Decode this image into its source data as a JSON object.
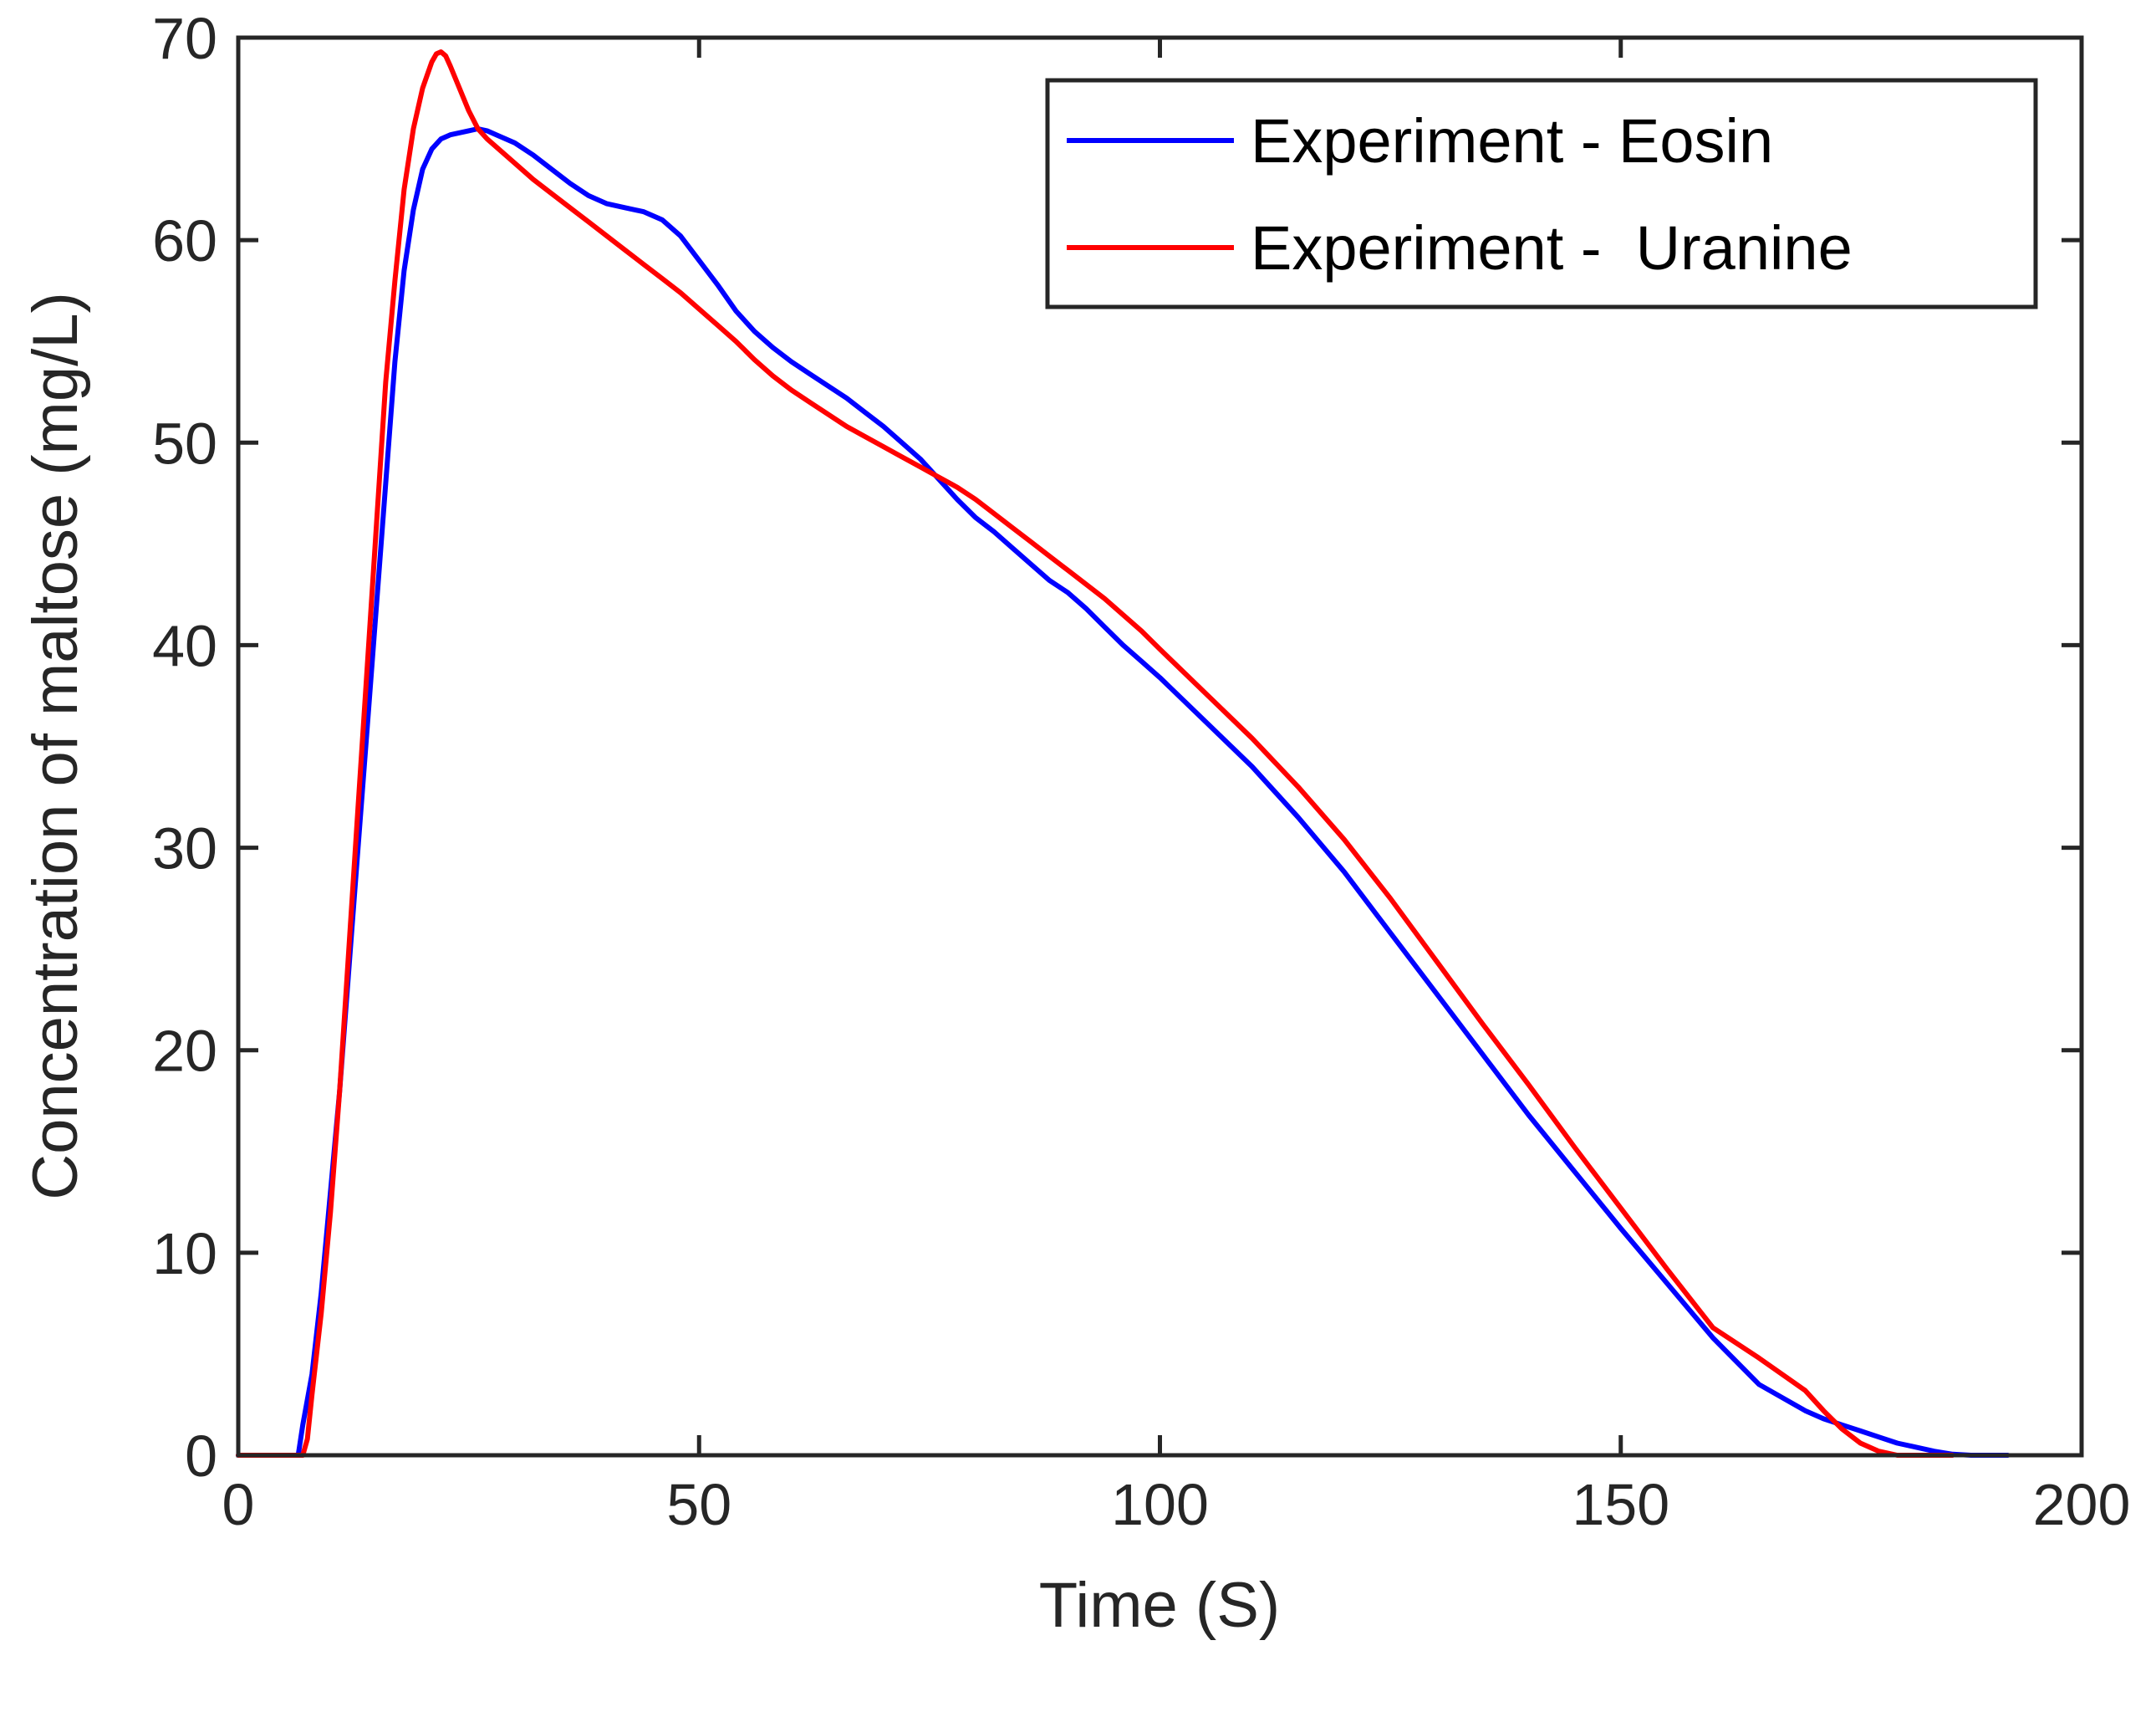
{
  "chart_data": {
    "type": "line",
    "title": "",
    "xlabel": "Time (S)",
    "ylabel": "Concentration of maltose (mg/L)",
    "xlim": [
      0,
      200
    ],
    "ylim": [
      0,
      70
    ],
    "xticks": [
      0,
      50,
      100,
      150,
      200
    ],
    "yticks": [
      0,
      10,
      20,
      30,
      40,
      50,
      60,
      70
    ],
    "grid": false,
    "legend_position": "top-right",
    "series": [
      {
        "name": "Experiment - Eosin",
        "color": "#0000ff",
        "x": [
          0,
          6.5,
          7,
          8,
          9,
          10,
          11,
          12,
          13,
          14,
          15,
          16,
          17,
          18,
          19,
          20,
          21,
          22,
          23,
          24,
          25,
          26,
          27,
          28,
          30,
          32,
          34,
          36,
          38,
          40,
          42,
          44,
          46,
          48,
          50,
          52,
          54,
          56,
          58,
          60,
          62,
          64,
          66,
          68,
          70,
          72,
          74,
          76,
          78,
          80,
          82,
          84,
          86,
          88,
          90,
          92,
          94,
          96,
          98,
          100,
          105,
          110,
          115,
          120,
          125,
          130,
          135,
          140,
          145,
          150,
          155,
          160,
          165,
          170,
          172,
          174,
          176,
          178,
          180,
          182,
          184,
          186,
          188,
          190,
          191,
          192
        ],
        "values": [
          0,
          0,
          1.5,
          4,
          8,
          13,
          18,
          24,
          30,
          36,
          42,
          48,
          54,
          58.5,
          61.5,
          63.5,
          64.5,
          65,
          65.2,
          65.3,
          65.4,
          65.5,
          65.4,
          65.2,
          64.8,
          64.2,
          63.5,
          62.8,
          62.2,
          61.8,
          61.6,
          61.4,
          61,
          60.2,
          59,
          57.8,
          56.5,
          55.5,
          54.7,
          54,
          53.4,
          52.8,
          52.2,
          51.5,
          50.8,
          50,
          49.2,
          48.2,
          47.2,
          46.3,
          45.6,
          44.8,
          44,
          43.2,
          42.6,
          41.8,
          40.9,
          40,
          39.2,
          38.4,
          36.2,
          34,
          31.5,
          28.8,
          25.8,
          22.8,
          19.8,
          16.8,
          14,
          11.2,
          8.5,
          5.8,
          3.5,
          2.2,
          1.8,
          1.5,
          1.2,
          0.9,
          0.6,
          0.4,
          0.2,
          0.05,
          0,
          0,
          0,
          0
        ]
      },
      {
        "name": "Experiment -  Uranine",
        "color": "#ff0000",
        "x": [
          0,
          7,
          7.5,
          8,
          9,
          10,
          11,
          12,
          13,
          14,
          15,
          16,
          17,
          18,
          19,
          20,
          21,
          21.5,
          22,
          22.5,
          23,
          24,
          25,
          26,
          27,
          28,
          30,
          32,
          34,
          36,
          38,
          40,
          42,
          44,
          46,
          48,
          50,
          52,
          54,
          56,
          58,
          60,
          62,
          64,
          66,
          68,
          70,
          72,
          74,
          76,
          78,
          80,
          82,
          84,
          86,
          88,
          90,
          92,
          94,
          96,
          98,
          100,
          105,
          110,
          115,
          120,
          125,
          130,
          135,
          140,
          145,
          150,
          155,
          160,
          165,
          170,
          172,
          174,
          176,
          178,
          180,
          182,
          184,
          185,
          186
        ],
        "values": [
          0,
          0,
          0.8,
          3,
          7,
          12,
          18,
          25,
          32,
          39,
          46,
          53,
          58,
          62.5,
          65.5,
          67.5,
          68.8,
          69.2,
          69.3,
          69.1,
          68.6,
          67.5,
          66.4,
          65.5,
          65,
          64.6,
          63.8,
          63,
          62.3,
          61.6,
          60.9,
          60.2,
          59.5,
          58.8,
          58.1,
          57.4,
          56.6,
          55.8,
          55,
          54.1,
          53.3,
          52.6,
          52,
          51.4,
          50.8,
          50.3,
          49.8,
          49.3,
          48.8,
          48.3,
          47.8,
          47.2,
          46.5,
          45.8,
          45.1,
          44.4,
          43.7,
          43,
          42.3,
          41.5,
          40.7,
          39.8,
          37.6,
          35.4,
          33,
          30.4,
          27.5,
          24.4,
          21.3,
          18.3,
          15.2,
          12.2,
          9.2,
          6.3,
          4.8,
          3.2,
          2.2,
          1.3,
          0.6,
          0.2,
          0,
          0,
          0,
          0,
          0
        ]
      }
    ]
  }
}
